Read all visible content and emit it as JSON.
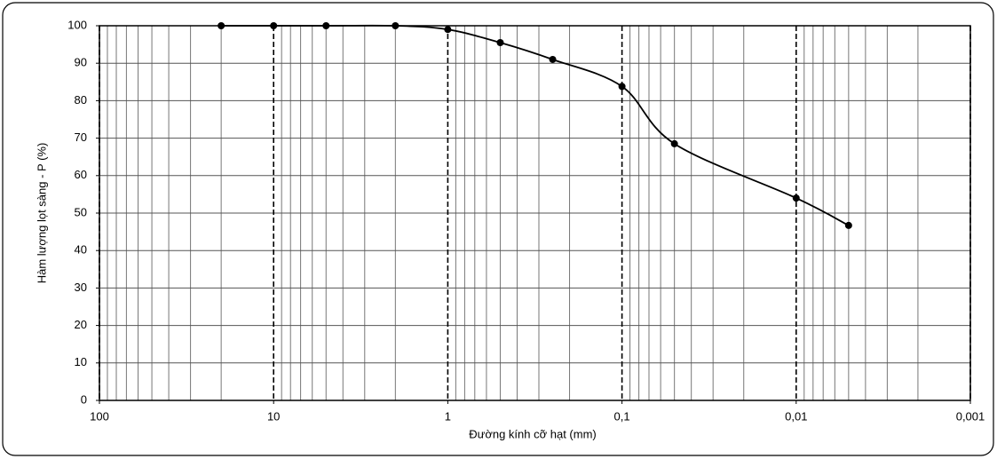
{
  "chart_data": {
    "type": "line",
    "y_label": "Hàm lượng lọt sàng - P (%)",
    "x_label": "Đường kính cỡ hạt (mm)",
    "x": [
      20,
      10,
      5,
      2,
      1,
      0.5,
      0.25,
      0.1,
      0.05,
      0.01,
      0.005
    ],
    "series": [
      {
        "color": "#000000",
        "values": [
          100,
          100,
          100,
          100,
          99,
          95.5,
          91,
          83.8,
          68.5,
          54,
          46.7
        ]
      }
    ],
    "xlim": [
      100,
      0.001
    ],
    "xticks": [
      100,
      10,
      1,
      {
        "value": 0.1,
        "label": "0,1"
      },
      {
        "value": 0.01,
        "label": "0,01"
      },
      {
        "value": 0.001,
        "label": "0,001"
      }
    ],
    "x_log": true,
    "minor_grid": true,
    "ylim": [
      0,
      100
    ],
    "yticks": [
      0,
      10,
      20,
      30,
      40,
      50,
      60,
      70,
      80,
      90,
      100
    ],
    "grid": true
  }
}
